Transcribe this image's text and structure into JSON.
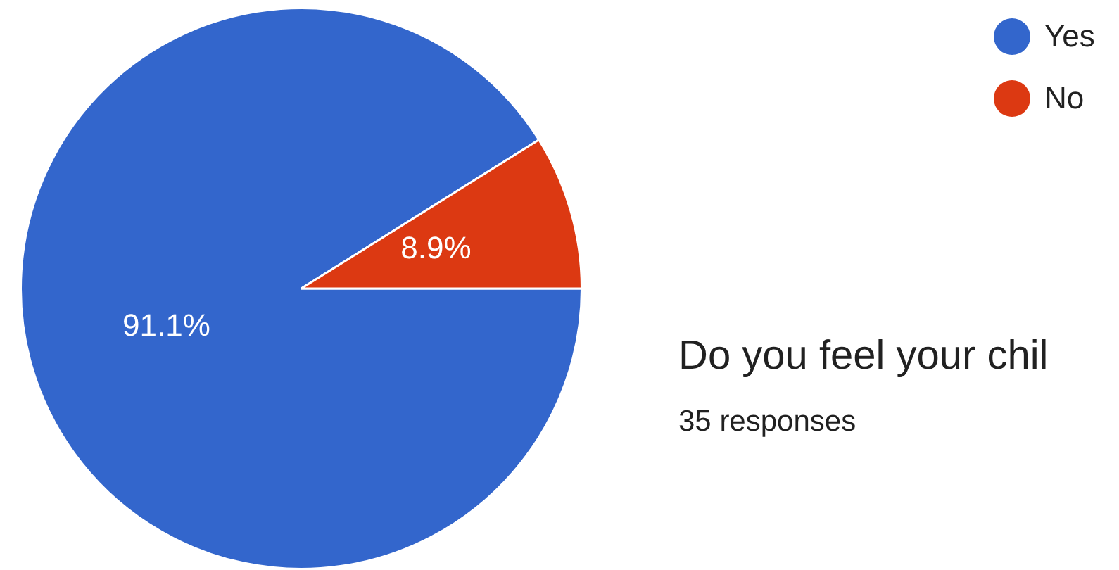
{
  "chart_data": {
    "type": "pie",
    "title": "Do you feel your chil",
    "subtitle": "35 responses",
    "categories": [
      "Yes",
      "No"
    ],
    "values": [
      91.1,
      8.9
    ],
    "colors": [
      "#3366cc",
      "#dc3912"
    ],
    "value_labels": [
      "91.1%",
      "8.9%"
    ],
    "legend": "top right"
  }
}
